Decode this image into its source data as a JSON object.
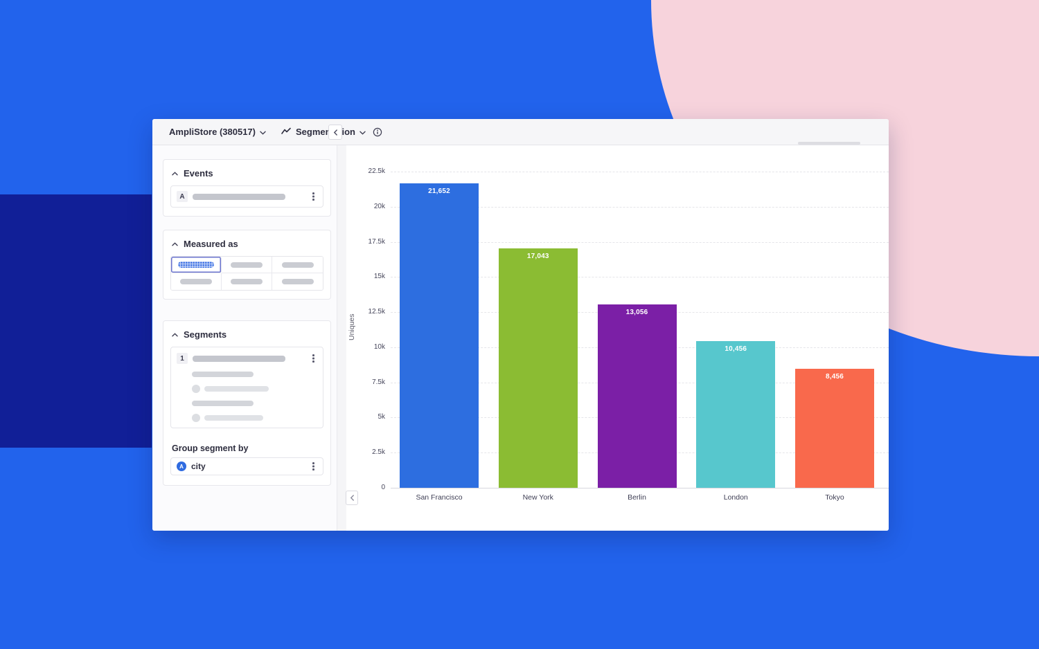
{
  "background": {
    "base_color": "#2263ec",
    "navy_rect_color": "#111f97",
    "pink_blob_color": "#f7d3dc"
  },
  "topbar": {
    "project_label": "AmpliStore (380517)",
    "view_label": "Segmentation"
  },
  "sidebar": {
    "events": {
      "title": "Events",
      "row_badge": "A"
    },
    "measured_as": {
      "title": "Measured as"
    },
    "segments": {
      "title": "Segments",
      "row_badge": "1"
    },
    "group_segment_by": {
      "label": "Group segment by",
      "value": "city",
      "icon_letter": "A"
    }
  },
  "chart_data": {
    "type": "bar",
    "title": "",
    "xlabel": "",
    "ylabel": "Uniques",
    "categories": [
      "San Francisco",
      "New York",
      "Berlin",
      "London",
      "Tokyo"
    ],
    "values": [
      21652,
      17043,
      13056,
      10456,
      8456
    ],
    "value_labels": [
      "21,652",
      "17,043",
      "13,056",
      "10,456",
      "8,456"
    ],
    "bar_colors": [
      "#2d6ee0",
      "#8bbc33",
      "#7b1fa6",
      "#57c7cd",
      "#f9694c"
    ],
    "ylim": [
      0,
      22500
    ],
    "yticks": [
      0,
      2500,
      5000,
      7500,
      10000,
      12500,
      15000,
      17500,
      20000,
      22500
    ],
    "ytick_labels": [
      "0",
      "2.5k",
      "5k",
      "7.5k",
      "10k",
      "12.5k",
      "15k",
      "17.5k",
      "20k",
      "22.5k"
    ],
    "grid": "horizontal-dashed",
    "legend": "none"
  }
}
